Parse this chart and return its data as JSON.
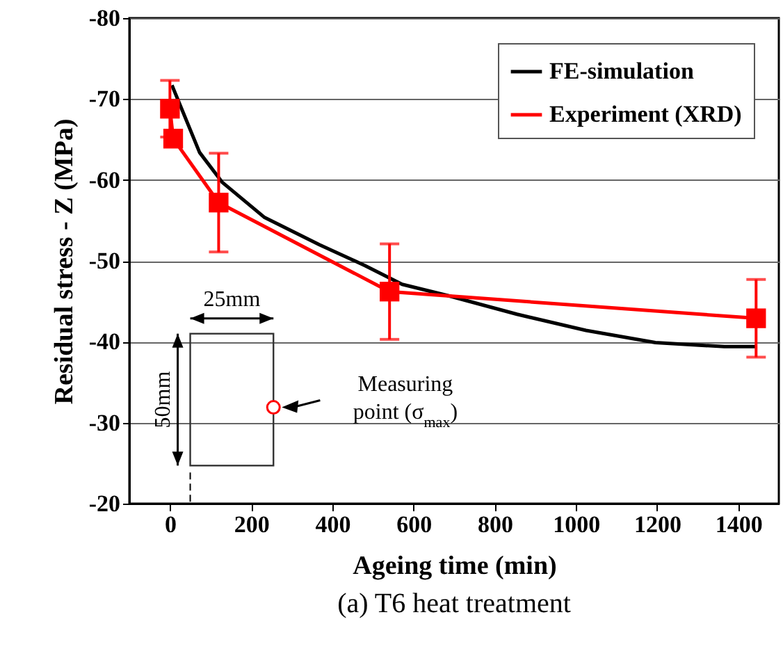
{
  "chart_data": {
    "type": "line",
    "title": "(a) T6 heat treatment",
    "xlabel": "Ageing time (min)",
    "ylabel": "Residual stress - Z (MPa)",
    "xlim": [
      -100,
      1500
    ],
    "xticks": [
      0,
      200,
      400,
      600,
      800,
      1000,
      1200,
      1400
    ],
    "ylim": [
      -20,
      -80
    ],
    "yticks": [
      -80,
      -70,
      -60,
      -50,
      -40,
      -30,
      -20
    ],
    "grid": "y",
    "legend": "top right",
    "series": [
      {
        "name": "FE-simulation",
        "color": "#000000",
        "marker": "none",
        "x": [
          5,
          73,
          129,
          232,
          368,
          481,
          572,
          685,
          855,
          1025,
          1196,
          1366,
          1443
        ],
        "values": [
          -71.7,
          -63.4,
          -59.7,
          -55.4,
          -52.0,
          -49.4,
          -47.1,
          -45.7,
          -43.4,
          -41.4,
          -39.9,
          -39.4,
          -39.4
        ]
      },
      {
        "name": "Experiment (XRD)",
        "color": "#ff0000",
        "marker": "square",
        "x": [
          0,
          8,
          120,
          541,
          1444
        ],
        "values": [
          -68.8,
          -65.1,
          -57.2,
          -46.2,
          -42.9
        ],
        "errors": [
          3.5,
          1,
          6.1,
          5.9,
          4.8
        ]
      }
    ],
    "annotations": [
      "25mm",
      "50mm",
      "Measuring point (σ$_{max}$)"
    ]
  }
}
